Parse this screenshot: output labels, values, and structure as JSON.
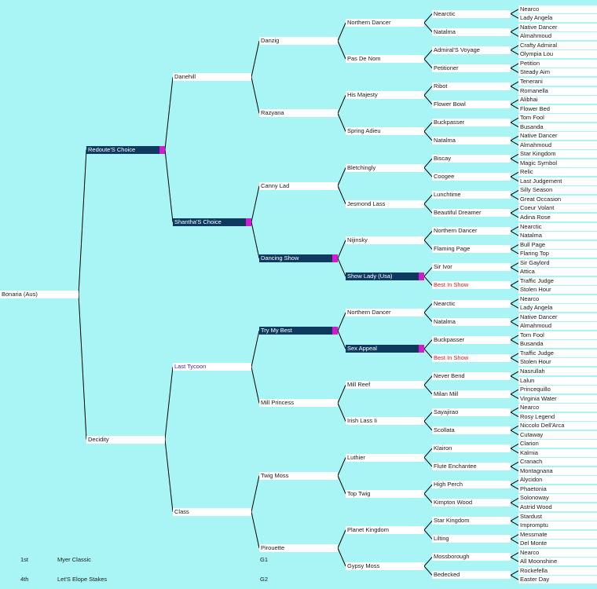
{
  "colors": {
    "background": "#A9F5F5",
    "label_bg": "#FFFFFF",
    "highlight_bg": "#0F3A5F",
    "highlight_marker": "#D21AD2",
    "red_text": "#E01B1B",
    "purple_text": "#3A1AC8"
  },
  "pedigree": {
    "name": "Bonaria (Aus)",
    "sire": {
      "name": "Redoute'S Choice",
      "style": "hl",
      "sire": {
        "name": "Danehill",
        "sire": {
          "name": "Danzig",
          "sire": {
            "name": "Northern Dancer",
            "sire": {
              "name": "Nearctic",
              "sire": {
                "name": "Nearco"
              },
              "dam": {
                "name": "Lady Angela"
              }
            },
            "dam": {
              "name": "Natalma",
              "sire": {
                "name": "Native Dancer"
              },
              "dam": {
                "name": "Almahmoud"
              }
            }
          },
          "dam": {
            "name": "Pas De Nom",
            "sire": {
              "name": "Admiral'S Voyage",
              "sire": {
                "name": "Crafty Admiral"
              },
              "dam": {
                "name": "Olympia Lou"
              }
            },
            "dam": {
              "name": "Petitioner",
              "sire": {
                "name": "Petition"
              },
              "dam": {
                "name": "Steady Aim"
              }
            }
          }
        },
        "dam": {
          "name": "Razyana",
          "sire": {
            "name": "His Majesty",
            "sire": {
              "name": "Ribot",
              "sire": {
                "name": "Tenerani"
              },
              "dam": {
                "name": "Romanella"
              }
            },
            "dam": {
              "name": "Flower Bowl",
              "sire": {
                "name": "Alibhai"
              },
              "dam": {
                "name": "Flower Bed"
              }
            }
          },
          "dam": {
            "name": "Spring Adieu",
            "sire": {
              "name": "Buckpasser",
              "sire": {
                "name": "Tom Fool"
              },
              "dam": {
                "name": "Busanda"
              }
            },
            "dam": {
              "name": "Natalma",
              "sire": {
                "name": "Native Dancer"
              },
              "dam": {
                "name": "Almahmoud"
              }
            }
          }
        }
      },
      "dam": {
        "name": "Shantha'S Choice",
        "style": "hl",
        "sire": {
          "name": "Canny Lad",
          "sire": {
            "name": "Bletchingly",
            "sire": {
              "name": "Biscay",
              "sire": {
                "name": "Star Kingdom"
              },
              "dam": {
                "name": "Magic Symbol"
              }
            },
            "dam": {
              "name": "Coogee",
              "sire": {
                "name": "Relic"
              },
              "dam": {
                "name": "Last Judgement"
              }
            }
          },
          "dam": {
            "name": "Jesmond Lass",
            "sire": {
              "name": "Lunchtime",
              "sire": {
                "name": "Silly Season"
              },
              "dam": {
                "name": "Great Occasion"
              }
            },
            "dam": {
              "name": "Beautiful Dreamer",
              "sire": {
                "name": "Coeur Volant"
              },
              "dam": {
                "name": "Adina Rose"
              }
            }
          }
        },
        "dam": {
          "name": "Dancing Show",
          "style": "hl",
          "sire": {
            "name": "Nijinsky",
            "sire": {
              "name": "Northern Dancer",
              "sire": {
                "name": "Nearctic"
              },
              "dam": {
                "name": "Natalma"
              }
            },
            "dam": {
              "name": "Flaming Page",
              "sire": {
                "name": "Bull Page"
              },
              "dam": {
                "name": "Flaring Top"
              }
            }
          },
          "dam": {
            "name": "Show Lady (Usa)",
            "style": "hl",
            "sire": {
              "name": "Sir Ivor",
              "sire": {
                "name": "Sir Gaylord"
              },
              "dam": {
                "name": "Attica"
              }
            },
            "dam": {
              "name": "Best In Show",
              "style": "red",
              "sire": {
                "name": "Traffic Judge"
              },
              "dam": {
                "name": "Stolen Hour"
              }
            }
          }
        }
      }
    },
    "dam": {
      "name": "Decidity",
      "sire": {
        "name": "Last Tycoon",
        "style": "purple",
        "sire": {
          "name": "Try My Best",
          "style": "hl",
          "sire": {
            "name": "Northern Dancer",
            "sire": {
              "name": "Nearctic",
              "sire": {
                "name": "Nearco"
              },
              "dam": {
                "name": "Lady Angela"
              }
            },
            "dam": {
              "name": "Natalma",
              "sire": {
                "name": "Native Dancer"
              },
              "dam": {
                "name": "Almahmoud"
              }
            }
          },
          "dam": {
            "name": "Sex Appeal",
            "style": "hl",
            "sire": {
              "name": "Buckpasser",
              "sire": {
                "name": "Tom Fool"
              },
              "dam": {
                "name": "Busanda"
              }
            },
            "dam": {
              "name": "Best In Show",
              "style": "red",
              "sire": {
                "name": "Traffic Judge"
              },
              "dam": {
                "name": "Stolen Hour"
              }
            }
          }
        },
        "dam": {
          "name": "Mill Princess",
          "sire": {
            "name": "Mill Reef",
            "sire": {
              "name": "Never Bend",
              "sire": {
                "name": "Nasrullah"
              },
              "dam": {
                "name": "Lalun"
              }
            },
            "dam": {
              "name": "Milan Mill",
              "sire": {
                "name": "Princequillo"
              },
              "dam": {
                "name": "Virginia Water"
              }
            }
          },
          "dam": {
            "name": "Irish Lass Ii",
            "sire": {
              "name": "Sayajirao",
              "sire": {
                "name": "Nearco"
              },
              "dam": {
                "name": "Rosy Legend"
              }
            },
            "dam": {
              "name": "Scollata",
              "sire": {
                "name": "Niccolo Dell'Arca"
              },
              "dam": {
                "name": "Cutaway"
              }
            }
          }
        }
      },
      "dam": {
        "name": "Class",
        "sire": {
          "name": "Twig Moss",
          "sire": {
            "name": "Luthier",
            "sire": {
              "name": "Klairon",
              "sire": {
                "name": "Clarion"
              },
              "dam": {
                "name": "Kalmia"
              }
            },
            "dam": {
              "name": "Flute Enchantee",
              "sire": {
                "name": "Cranach"
              },
              "dam": {
                "name": "Montagnana"
              }
            }
          },
          "dam": {
            "name": "Top Twig",
            "sire": {
              "name": "High Perch",
              "sire": {
                "name": "Alycidon"
              },
              "dam": {
                "name": "Phaetonia"
              }
            },
            "dam": {
              "name": "Kimpton Wood",
              "sire": {
                "name": "Solonoway"
              },
              "dam": {
                "name": "Astrid Wood"
              }
            }
          }
        },
        "dam": {
          "name": "Pirouette",
          "sire": {
            "name": "Planet Kingdom",
            "sire": {
              "name": "Star Kingdom",
              "sire": {
                "name": "Stardust"
              },
              "dam": {
                "name": "Impromptu"
              }
            },
            "dam": {
              "name": "Lilting",
              "sire": {
                "name": "Messmate"
              },
              "dam": {
                "name": "Del Monte"
              }
            }
          },
          "dam": {
            "name": "Gypsy Moss",
            "sire": {
              "name": "Mossborough",
              "sire": {
                "name": "Nearco"
              },
              "dam": {
                "name": "All Moonshine"
              }
            },
            "dam": {
              "name": "Bedecked",
              "sire": {
                "name": "Rockefella"
              },
              "dam": {
                "name": "Easter Day"
              }
            }
          }
        }
      }
    }
  },
  "races": [
    {
      "place": "1st",
      "name": "Myer Classic",
      "grade": "G1"
    },
    {
      "place": "4th",
      "name": "Let'S Elope Stakes",
      "grade": "G2"
    }
  ]
}
